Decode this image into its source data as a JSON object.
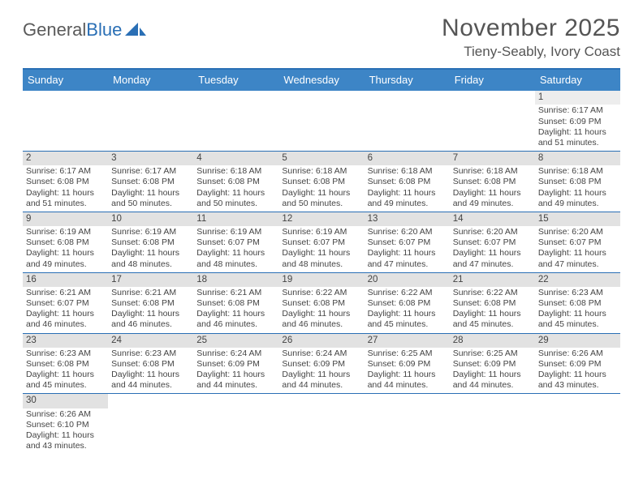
{
  "brand": {
    "part1": "General",
    "part2": "Blue"
  },
  "title": {
    "month": "November 2025",
    "location": "Tieny-Seably, Ivory Coast"
  },
  "colors": {
    "header_bg": "#3d85c6",
    "border": "#2a6fb5",
    "daynum_bg": "#e2e2e2",
    "text": "#444444",
    "page_bg": "#ffffff"
  },
  "day_names": [
    "Sunday",
    "Monday",
    "Tuesday",
    "Wednesday",
    "Thursday",
    "Friday",
    "Saturday"
  ],
  "labels": {
    "sunrise": "Sunrise:",
    "sunset": "Sunset:",
    "daylight": "Daylight:"
  },
  "weeks": [
    [
      null,
      null,
      null,
      null,
      null,
      null,
      {
        "n": "1",
        "sr": "6:17 AM",
        "ss": "6:09 PM",
        "dl": "11 hours and 51 minutes."
      }
    ],
    [
      {
        "n": "2",
        "sr": "6:17 AM",
        "ss": "6:08 PM",
        "dl": "11 hours and 51 minutes."
      },
      {
        "n": "3",
        "sr": "6:17 AM",
        "ss": "6:08 PM",
        "dl": "11 hours and 50 minutes."
      },
      {
        "n": "4",
        "sr": "6:18 AM",
        "ss": "6:08 PM",
        "dl": "11 hours and 50 minutes."
      },
      {
        "n": "5",
        "sr": "6:18 AM",
        "ss": "6:08 PM",
        "dl": "11 hours and 50 minutes."
      },
      {
        "n": "6",
        "sr": "6:18 AM",
        "ss": "6:08 PM",
        "dl": "11 hours and 49 minutes."
      },
      {
        "n": "7",
        "sr": "6:18 AM",
        "ss": "6:08 PM",
        "dl": "11 hours and 49 minutes."
      },
      {
        "n": "8",
        "sr": "6:18 AM",
        "ss": "6:08 PM",
        "dl": "11 hours and 49 minutes."
      }
    ],
    [
      {
        "n": "9",
        "sr": "6:19 AM",
        "ss": "6:08 PM",
        "dl": "11 hours and 49 minutes."
      },
      {
        "n": "10",
        "sr": "6:19 AM",
        "ss": "6:08 PM",
        "dl": "11 hours and 48 minutes."
      },
      {
        "n": "11",
        "sr": "6:19 AM",
        "ss": "6:07 PM",
        "dl": "11 hours and 48 minutes."
      },
      {
        "n": "12",
        "sr": "6:19 AM",
        "ss": "6:07 PM",
        "dl": "11 hours and 48 minutes."
      },
      {
        "n": "13",
        "sr": "6:20 AM",
        "ss": "6:07 PM",
        "dl": "11 hours and 47 minutes."
      },
      {
        "n": "14",
        "sr": "6:20 AM",
        "ss": "6:07 PM",
        "dl": "11 hours and 47 minutes."
      },
      {
        "n": "15",
        "sr": "6:20 AM",
        "ss": "6:07 PM",
        "dl": "11 hours and 47 minutes."
      }
    ],
    [
      {
        "n": "16",
        "sr": "6:21 AM",
        "ss": "6:07 PM",
        "dl": "11 hours and 46 minutes."
      },
      {
        "n": "17",
        "sr": "6:21 AM",
        "ss": "6:08 PM",
        "dl": "11 hours and 46 minutes."
      },
      {
        "n": "18",
        "sr": "6:21 AM",
        "ss": "6:08 PM",
        "dl": "11 hours and 46 minutes."
      },
      {
        "n": "19",
        "sr": "6:22 AM",
        "ss": "6:08 PM",
        "dl": "11 hours and 46 minutes."
      },
      {
        "n": "20",
        "sr": "6:22 AM",
        "ss": "6:08 PM",
        "dl": "11 hours and 45 minutes."
      },
      {
        "n": "21",
        "sr": "6:22 AM",
        "ss": "6:08 PM",
        "dl": "11 hours and 45 minutes."
      },
      {
        "n": "22",
        "sr": "6:23 AM",
        "ss": "6:08 PM",
        "dl": "11 hours and 45 minutes."
      }
    ],
    [
      {
        "n": "23",
        "sr": "6:23 AM",
        "ss": "6:08 PM",
        "dl": "11 hours and 45 minutes."
      },
      {
        "n": "24",
        "sr": "6:23 AM",
        "ss": "6:08 PM",
        "dl": "11 hours and 44 minutes."
      },
      {
        "n": "25",
        "sr": "6:24 AM",
        "ss": "6:09 PM",
        "dl": "11 hours and 44 minutes."
      },
      {
        "n": "26",
        "sr": "6:24 AM",
        "ss": "6:09 PM",
        "dl": "11 hours and 44 minutes."
      },
      {
        "n": "27",
        "sr": "6:25 AM",
        "ss": "6:09 PM",
        "dl": "11 hours and 44 minutes."
      },
      {
        "n": "28",
        "sr": "6:25 AM",
        "ss": "6:09 PM",
        "dl": "11 hours and 44 minutes."
      },
      {
        "n": "29",
        "sr": "6:26 AM",
        "ss": "6:09 PM",
        "dl": "11 hours and 43 minutes."
      }
    ],
    [
      {
        "n": "30",
        "sr": "6:26 AM",
        "ss": "6:10 PM",
        "dl": "11 hours and 43 minutes."
      },
      null,
      null,
      null,
      null,
      null,
      null
    ]
  ]
}
